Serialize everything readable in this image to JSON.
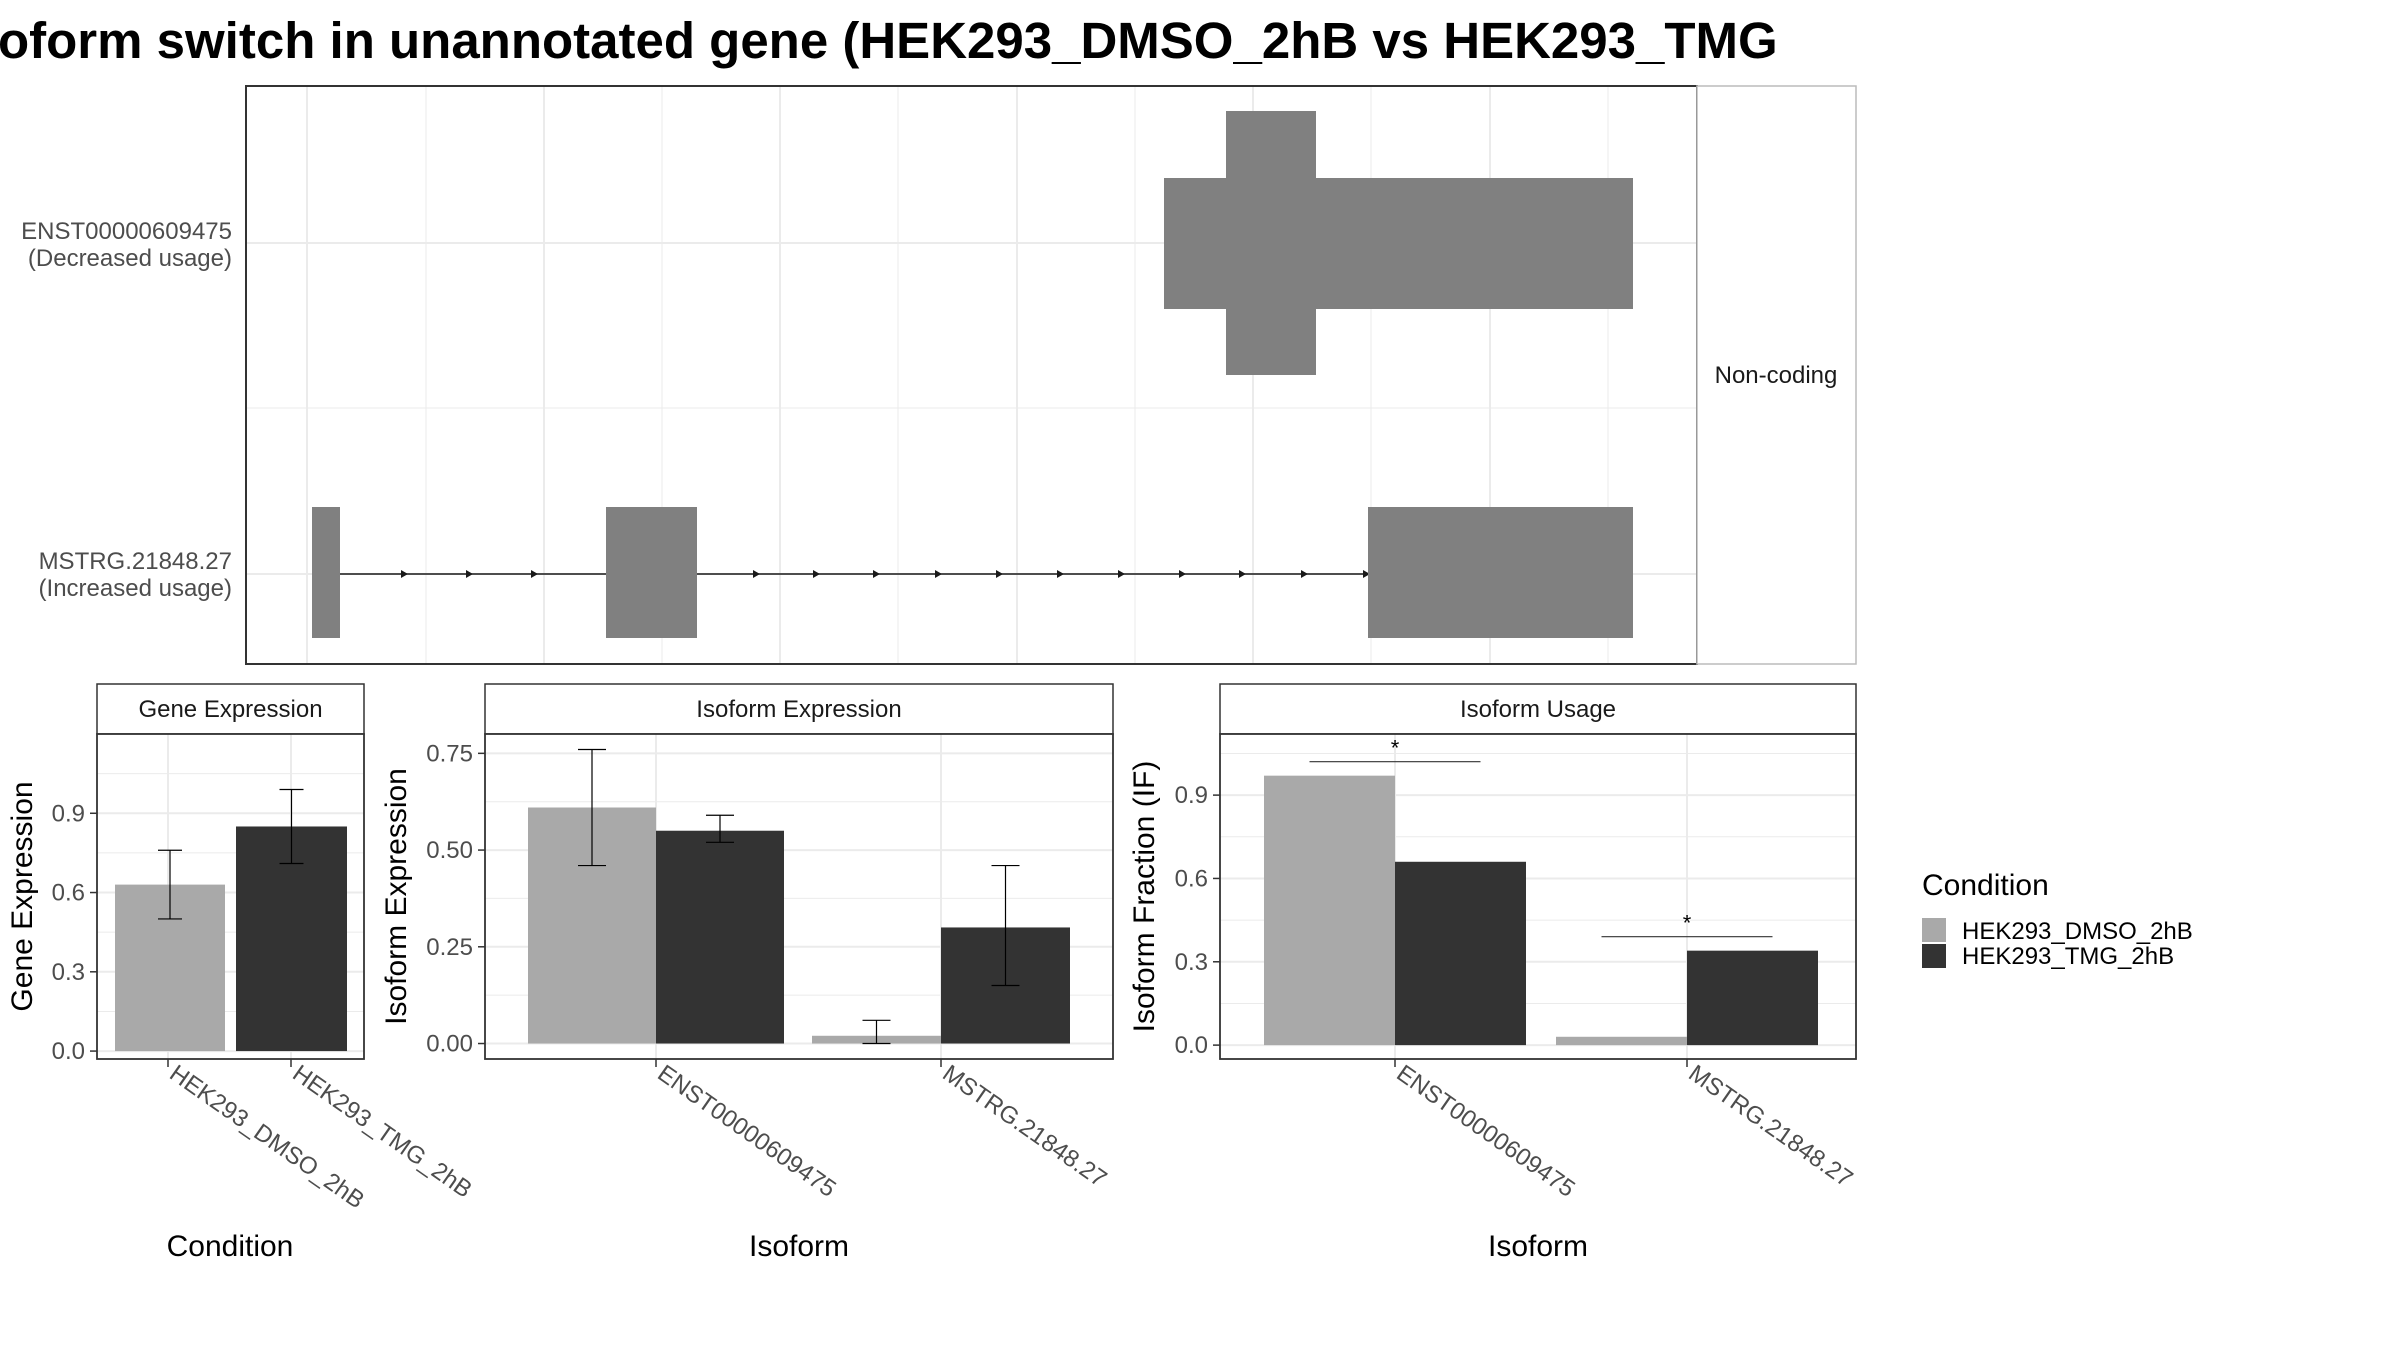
{
  "title": "oform switch in unannotated gene (HEK293_DMSO_2hB vs HEK293_TMG",
  "colors": {
    "dmso": "#a9a9a9",
    "tmg": "#333333",
    "exon": "#808080",
    "grid": "#ebebeb",
    "frame": "#333333"
  },
  "transcripts": {
    "strip_label": "Non-coding",
    "isoforms": [
      {
        "name": "ENST00000609475",
        "usage": "(Decreased usage)"
      },
      {
        "name": "MSTRG.21848.27",
        "usage": "(Increased usage)"
      }
    ]
  },
  "legend": {
    "title": "Condition",
    "entries": [
      "HEK293_DMSO_2hB",
      "HEK293_TMG_2hB"
    ]
  },
  "chart_data": [
    {
      "type": "bar",
      "panel": "Gene Expression",
      "categories": [
        "HEK293_DMSO_2hB",
        "HEK293_TMG_2hB"
      ],
      "values": [
        0.63,
        0.85
      ],
      "errors": [
        [
          0.5,
          0.76
        ],
        [
          0.71,
          0.99
        ]
      ],
      "xlabel": "Condition",
      "ylabel": "Gene Expression",
      "ylim": [
        -0.03,
        1.2
      ],
      "yticks": [
        "0.0",
        "0.3",
        "0.6",
        "0.9"
      ],
      "yticks_values": [
        0,
        0.3,
        0.6,
        0.9
      ],
      "legend": "none"
    },
    {
      "type": "bar",
      "panel": "Isoform Expression",
      "categories": [
        "ENST00000609475",
        "MSTRG.21848.27"
      ],
      "series": [
        {
          "name": "HEK293_DMSO_2hB",
          "values": [
            0.61,
            0.02
          ],
          "errors": [
            [
              0.46,
              0.76
            ],
            [
              0.0,
              0.06
            ]
          ]
        },
        {
          "name": "HEK293_TMG_2hB",
          "values": [
            0.55,
            0.3
          ],
          "errors": [
            [
              0.52,
              0.59
            ],
            [
              0.15,
              0.46
            ]
          ]
        }
      ],
      "xlabel": "Isoform",
      "ylabel": "Isoform Expression",
      "ylim": [
        -0.04,
        0.8
      ],
      "yticks": [
        "0.00",
        "0.25",
        "0.50",
        "0.75"
      ],
      "yticks_values": [
        0,
        0.25,
        0.5,
        0.75
      ]
    },
    {
      "type": "bar",
      "panel": "Isoform Usage",
      "categories": [
        "ENST00000609475",
        "MSTRG.21848.27"
      ],
      "series": [
        {
          "name": "HEK293_DMSO_2hB",
          "values": [
            0.97,
            0.03
          ]
        },
        {
          "name": "HEK293_TMG_2hB",
          "values": [
            0.66,
            0.34
          ]
        }
      ],
      "significance": [
        "*",
        "*"
      ],
      "xlabel": "Isoform",
      "ylabel": "Isoform Fraction (IF)",
      "ylim": [
        -0.05,
        1.12
      ],
      "yticks": [
        "0.0",
        "0.3",
        "0.6",
        "0.9"
      ],
      "yticks_values": [
        0,
        0.3,
        0.6,
        0.9
      ],
      "legend": "right"
    }
  ]
}
